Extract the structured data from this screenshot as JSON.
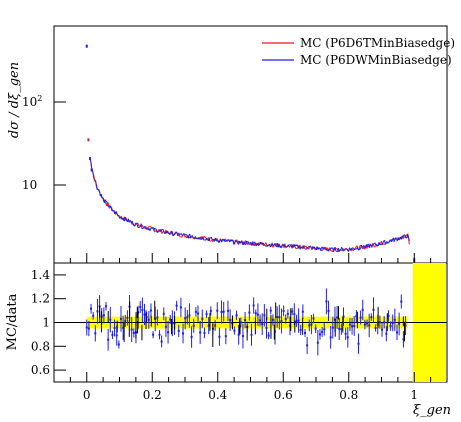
{
  "chart_data": [
    {
      "type": "line",
      "panel": "main",
      "ylabel": "dσ / dξ_gen",
      "yscale": "log",
      "ylim": [
        2,
        800
      ],
      "xlim": [
        -0.1,
        1.1
      ],
      "y_tick_labels": [
        {
          "value": 10,
          "base": "10",
          "exp": ""
        },
        {
          "value": 100,
          "base": "10",
          "exp": "2"
        }
      ],
      "legend_position": "top-right",
      "series": [
        {
          "name": "MC (P6D6TMinBiasedge)",
          "color": "#e41a1c"
        },
        {
          "name": "MC (P6DWMinBiasedge)",
          "color": "#1f1fe6"
        }
      ],
      "curve": {
        "x": [
          0.0,
          0.005,
          0.01,
          0.02,
          0.03,
          0.05,
          0.08,
          0.1,
          0.15,
          0.2,
          0.25,
          0.3,
          0.35,
          0.4,
          0.45,
          0.5,
          0.55,
          0.6,
          0.65,
          0.7,
          0.75,
          0.8,
          0.85,
          0.9,
          0.95,
          0.98,
          1.0
        ],
        "y": [
          500,
          45,
          28,
          19,
          14,
          10,
          7.5,
          6.5,
          5.3,
          4.7,
          4.3,
          4.0,
          3.8,
          3.55,
          3.4,
          3.3,
          3.2,
          3.1,
          3.0,
          2.9,
          2.8,
          2.85,
          3.0,
          3.3,
          3.7,
          4.0,
          2.0
        ]
      }
    },
    {
      "type": "scatter",
      "panel": "ratio",
      "ylabel": "MC/data",
      "xlabel": "ξ_gen",
      "xlim": [
        -0.1,
        1.1
      ],
      "ylim": [
        0.5,
        1.5
      ],
      "x_ticks": [
        0,
        0.2,
        0.4,
        0.6,
        0.8,
        1
      ],
      "x_tick_labels": [
        "0",
        "0.2",
        "0.4",
        "0.6",
        "0.8",
        "1"
      ],
      "y_ticks": [
        0.6,
        0.8,
        1,
        1.2,
        1.4
      ],
      "y_tick_labels": [
        "0.6",
        "0.8",
        "1",
        "1.2",
        "1.4"
      ],
      "reference_line": 1,
      "band": {
        "color": "#ffff00",
        "lower": 0.95,
        "upper": 1.05,
        "x_range": [
          0.0,
          0.98
        ]
      },
      "edge_band": {
        "color": "#ffff00",
        "x_range": [
          0.995,
          1.1
        ]
      },
      "scatter_level": 1.0,
      "scatter_spread": 0.15
    }
  ]
}
